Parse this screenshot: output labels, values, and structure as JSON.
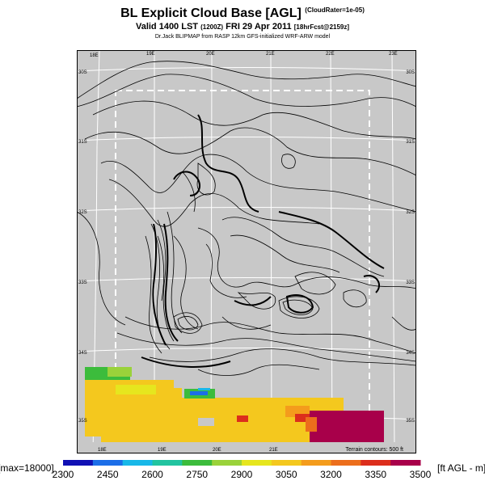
{
  "header": {
    "title": "BL Explicit Cloud Base [AGL]",
    "title_tag": "(CloudRater=1e-05)",
    "valid_line": "Valid 1400 LST",
    "valid_small1": "(1200Z)",
    "valid_date": "FRI 29 Apr 2011",
    "valid_small2": "[18hrFcst@2159z]",
    "credit": "Dr.Jack BLIPMAP from RASP 12km GFS-initialized WRF-ARW model"
  },
  "map": {
    "lon_labels": [
      "18E",
      "19E",
      "20E",
      "21E",
      "22E",
      "23E"
    ],
    "lat_labels": [
      "30S",
      "31S",
      "32S",
      "33S",
      "34S",
      "35S"
    ],
    "lat_labels_right": [
      "30S",
      "31S",
      "32S",
      "33S",
      "34S",
      "35S"
    ],
    "bottom_lon_labels": [
      "18E",
      "19E",
      "20E",
      "21E"
    ],
    "terrain_note": "Terrain contours: 500 ft",
    "background_color": "#c8c8c8"
  },
  "colorbar": {
    "left_label": "[max=18000]",
    "right_label": "[ft AGL - m]",
    "ticks": [
      "2300",
      "2450",
      "2600",
      "2750",
      "2900",
      "3050",
      "3200",
      "3350",
      "3500"
    ],
    "colors": [
      "#1010b4",
      "#1c6ee8",
      "#18b8e8",
      "#22c4a0",
      "#3cbc3c",
      "#9ad23a",
      "#e6e61e",
      "#f4c81e",
      "#f49c1c",
      "#ec6e1c",
      "#dc2e1c",
      "#a8004a"
    ]
  }
}
